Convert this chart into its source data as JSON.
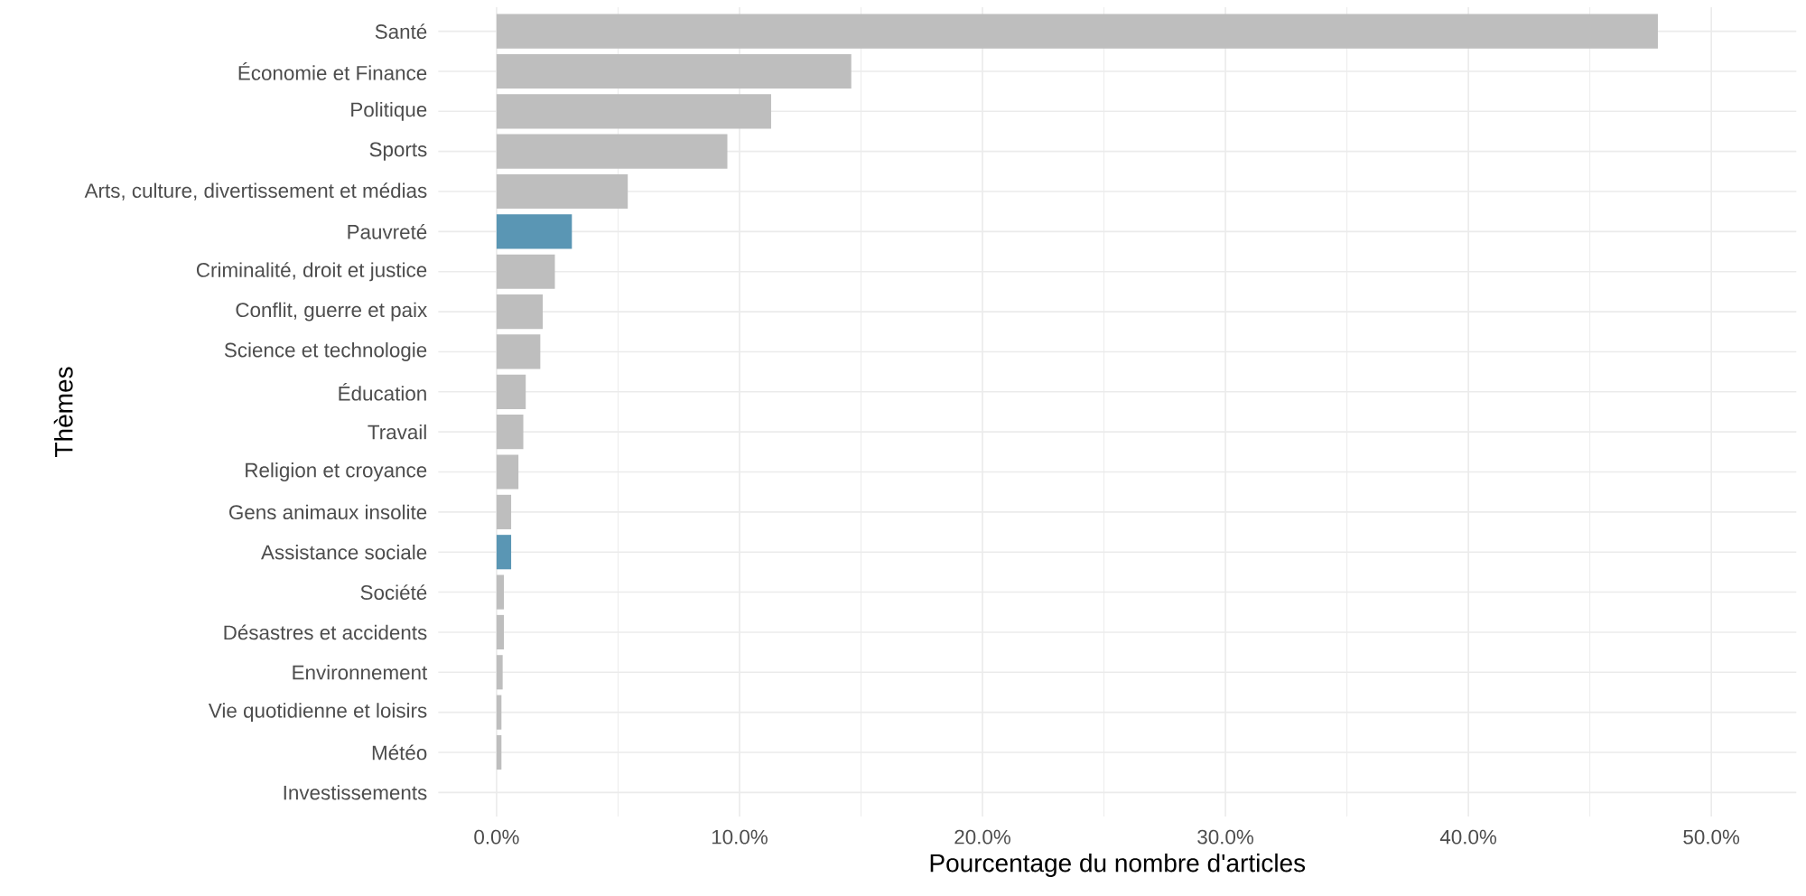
{
  "chart_data": {
    "type": "bar",
    "orientation": "horizontal",
    "xlabel": "Pourcentage du nombre d'articles",
    "ylabel": "Thèmes",
    "categories": [
      "Santé",
      "Économie et Finance",
      "Politique",
      "Sports",
      "Arts, culture, divertissement et médias",
      "Pauvreté",
      "Criminalité, droit et justice",
      "Conflit, guerre et paix",
      "Science et technologie",
      "Éducation",
      "Travail",
      "Religion et croyance",
      "Gens animaux insolite",
      "Assistance sociale",
      "Société",
      "Désastres et accidents",
      "Environnement",
      "Vie quotidienne et loisirs",
      "Météo",
      "Investissements"
    ],
    "values": [
      47.8,
      14.6,
      11.3,
      9.5,
      5.4,
      3.1,
      2.4,
      1.9,
      1.8,
      1.2,
      1.1,
      0.9,
      0.6,
      0.6,
      0.3,
      0.3,
      0.25,
      0.2,
      0.2,
      0
    ],
    "colors": [
      "#bebebe",
      "#bebebe",
      "#bebebe",
      "#bebebe",
      "#bebebe",
      "#5a96b4",
      "#bebebe",
      "#bebebe",
      "#bebebe",
      "#bebebe",
      "#bebebe",
      "#bebebe",
      "#bebebe",
      "#5a96b4",
      "#bebebe",
      "#bebebe",
      "#bebebe",
      "#bebebe",
      "#bebebe",
      "#bebebe"
    ],
    "xlim": [
      -2.4,
      53.5
    ],
    "xticks": [
      {
        "value": 0,
        "label": "0.0%"
      },
      {
        "value": 10,
        "label": "10.0%"
      },
      {
        "value": 20,
        "label": "20.0%"
      },
      {
        "value": 30,
        "label": "30.0%"
      },
      {
        "value": 40,
        "label": "40.0%"
      },
      {
        "value": 50,
        "label": "50.0%"
      }
    ],
    "grid": true
  }
}
